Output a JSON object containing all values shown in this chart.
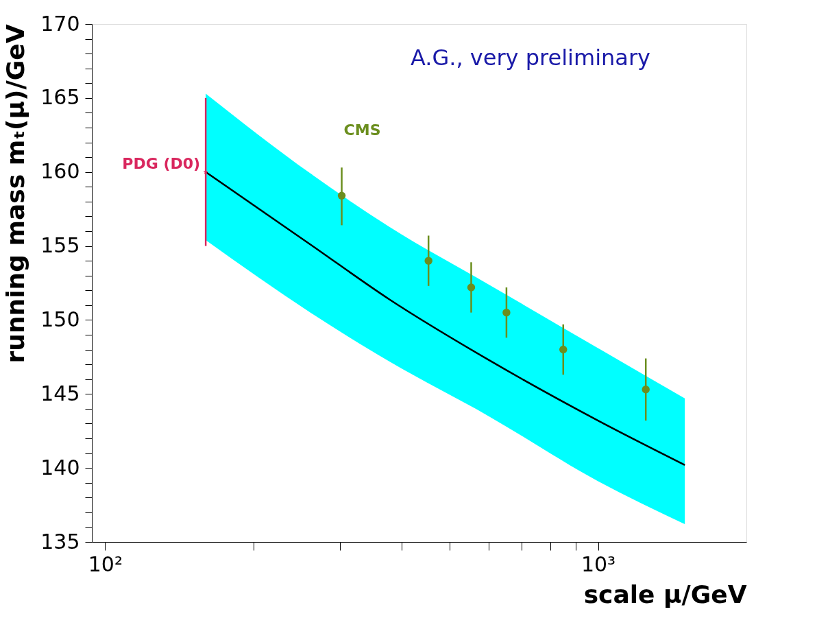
{
  "chart_data": {
    "type": "line",
    "xlabel": "scale μ/GeV",
    "ylabel": "running mass mₜ(μ)/GeV",
    "log": "x",
    "xlim": [
      94,
      2000
    ],
    "xticks": [
      {
        "value": 100,
        "label": "10²"
      },
      {
        "value": 200,
        "label": null
      },
      {
        "value": 300,
        "label": null
      },
      {
        "value": 400,
        "label": null
      },
      {
        "value": 500,
        "label": null
      },
      {
        "value": 600,
        "label": null
      },
      {
        "value": 700,
        "label": null
      },
      {
        "value": 800,
        "label": null
      },
      {
        "value": 900,
        "label": null
      },
      {
        "value": 1000,
        "label": "10³"
      }
    ],
    "ylim": [
      135,
      170
    ],
    "yticks": [
      135,
      {
        "value": 136,
        "label": null
      },
      {
        "value": 137,
        "label": null
      },
      {
        "value": 138,
        "label": null
      },
      {
        "value": 139,
        "label": null
      },
      140,
      {
        "value": 141,
        "label": null
      },
      {
        "value": 142,
        "label": null
      },
      {
        "value": 143,
        "label": null
      },
      {
        "value": 144,
        "label": null
      },
      145,
      {
        "value": 146,
        "label": null
      },
      {
        "value": 147,
        "label": null
      },
      {
        "value": 148,
        "label": null
      },
      {
        "value": 149,
        "label": null
      },
      150,
      {
        "value": 151,
        "label": null
      },
      {
        "value": 152,
        "label": null
      },
      {
        "value": 153,
        "label": null
      },
      {
        "value": 154,
        "label": null
      },
      155,
      {
        "value": 156,
        "label": null
      },
      {
        "value": 157,
        "label": null
      },
      {
        "value": 158,
        "label": null
      },
      {
        "value": 159,
        "label": null
      },
      160,
      {
        "value": 161,
        "label": null
      },
      {
        "value": 162,
        "label": null
      },
      {
        "value": 163,
        "label": null
      },
      {
        "value": 164,
        "label": null
      },
      165,
      {
        "value": 166,
        "label": null
      },
      {
        "value": 167,
        "label": null
      },
      {
        "value": 168,
        "label": null
      },
      {
        "value": 169,
        "label": null
      },
      170
    ],
    "series": [
      {
        "color": "#000000",
        "x": [
          160,
          261,
          377,
          600,
          1000,
          1500
        ],
        "values": [
          160.0,
          155.1,
          151.4,
          147.3,
          143.2,
          140.2
        ],
        "lower": [
          155.4,
          150.5,
          147.2,
          143.5,
          139.1,
          136.2
        ],
        "upper": [
          165.3,
          159.9,
          156.3,
          152.4,
          148.1,
          144.7
        ]
      },
      {
        "type": "scatter",
        "name": "CMS",
        "color": "#6b8e1e",
        "marker": "circle",
        "x": [
          302,
          453,
          553,
          652,
          850,
          1250
        ],
        "values": [
          158.4,
          154.0,
          152.2,
          150.5,
          148.0,
          145.3
        ],
        "errors": [
          [
            156.4,
            160.3
          ],
          [
            152.3,
            155.7
          ],
          [
            150.5,
            153.9
          ],
          [
            148.8,
            152.2
          ],
          [
            146.3,
            149.7
          ],
          [
            143.2,
            147.4
          ]
        ]
      },
      {
        "type": "scatter",
        "name": "PDG (D0)",
        "color": "#d9275e",
        "marker": "star",
        "x": [
          160
        ],
        "values": [
          160.0
        ],
        "errors": [
          5.0
        ]
      }
    ],
    "annotations": [
      "A.G., very preliminary"
    ]
  }
}
